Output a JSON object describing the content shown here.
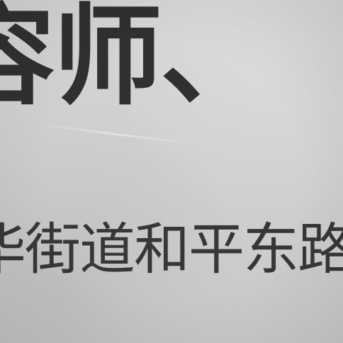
{
  "photo": {
    "title_fragment": "容师、",
    "address_fragment": "华街道和平东路"
  },
  "colors": {
    "paper": "#cfcfcf",
    "ink": "#303030"
  }
}
